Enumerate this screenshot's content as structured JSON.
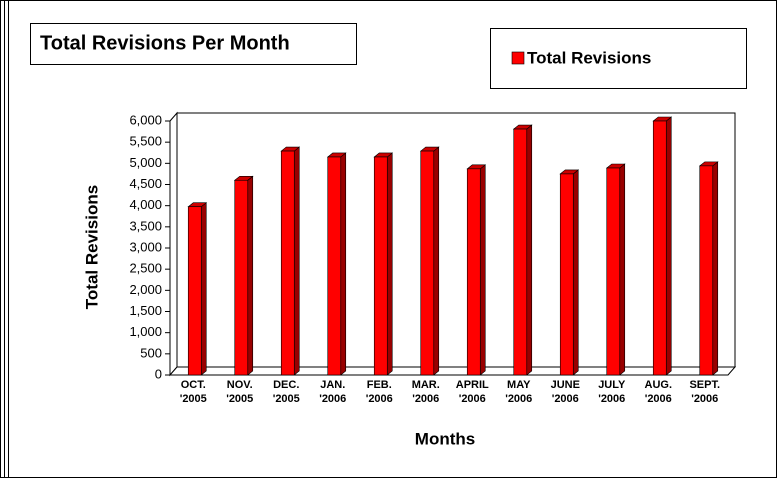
{
  "chart_data": {
    "type": "bar",
    "title": "Total Revisions Per Month",
    "x_label": "Months",
    "y_label": "Total Revisions",
    "categories": [
      "OCT. '2005",
      "NOV. '2005",
      "DEC. '2005",
      "JAN. '2006",
      "FEB. '2006",
      "MAR. '2006",
      "APRIL '2006",
      "MAY '2006",
      "JUNE '2006",
      "JULY '2006",
      "AUG. '2006",
      "SEPT. '2006"
    ],
    "series": [
      {
        "name": "Total Revisions",
        "color": "#ff0000",
        "values": [
          3975,
          4600,
          5290,
          5150,
          5150,
          5290,
          4870,
          5810,
          4750,
          4890,
          6000,
          4940
        ]
      }
    ],
    "ylim": [
      0,
      6000
    ],
    "yticks": [
      0,
      500,
      {
        "value": 1000,
        "label": "1,000"
      },
      {
        "value": 1500,
        "label": "1,500"
      },
      {
        "value": 2000,
        "label": "2,000"
      },
      {
        "value": 2500,
        "label": "2,500"
      },
      {
        "value": 3000,
        "label": "3,000"
      },
      {
        "value": 3500,
        "label": "3,500"
      },
      {
        "value": 4000,
        "label": "4,000"
      },
      {
        "value": 4500,
        "label": "4,500"
      },
      {
        "value": 5000,
        "label": "5,000"
      },
      {
        "value": 5500,
        "label": "5,500"
      },
      {
        "value": 6000,
        "label": "6,000"
      }
    ],
    "legend": "top-right",
    "grid": false
  }
}
